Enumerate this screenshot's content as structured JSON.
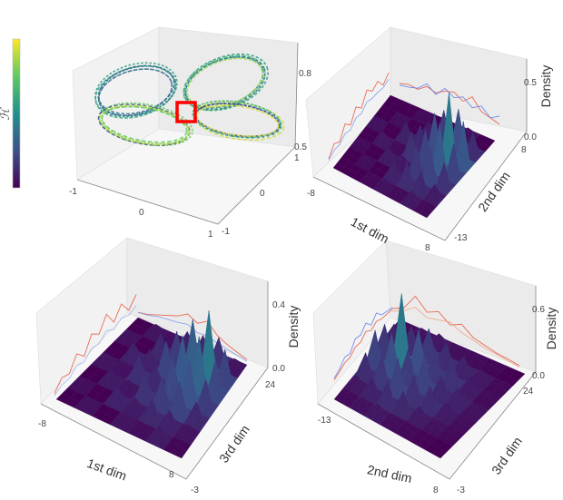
{
  "colorbar": {
    "label": "ℋ",
    "colormap": "viridis"
  },
  "chart_data": [
    {
      "type": "scatter",
      "title": "",
      "description_kind": "3d-trajectory",
      "x_ticks": [
        "-1",
        "0",
        "1"
      ],
      "y_ticks": [
        "-1",
        "0",
        "1"
      ],
      "z_ticks": [
        "0.5",
        "0.8"
      ],
      "xlim": [
        -1,
        1
      ],
      "ylim": [
        -1,
        1
      ],
      "zlim": [
        0.5,
        0.8
      ],
      "highlight_color": "#ff0000"
    },
    {
      "type": "heatmap",
      "surface": true,
      "xlabel": "1st dim",
      "ylabel": "2nd dim",
      "zlabel": "Density",
      "x_ticks": [
        "-8",
        "8"
      ],
      "y_ticks": [
        "-13",
        "8"
      ],
      "z_ticks": [
        "0.0",
        "0.5"
      ],
      "xlim": [
        -8,
        8
      ],
      "ylim": [
        -13,
        8
      ],
      "zlim": [
        0,
        0.5
      ],
      "grid": [
        [
          0,
          0,
          0.05,
          0,
          0.08,
          0,
          0
        ],
        [
          0,
          0.06,
          0,
          0.1,
          0,
          0.07,
          0
        ],
        [
          0.04,
          0,
          0.12,
          0.05,
          0.15,
          0,
          0.05
        ],
        [
          0.08,
          0.15,
          0.1,
          0.22,
          0.18,
          0.12,
          0
        ],
        [
          0.05,
          0.2,
          0.25,
          0.3,
          0.35,
          0.28,
          0.05
        ],
        [
          0.1,
          0.18,
          0.3,
          0.42,
          0.6,
          0.35,
          0.08
        ],
        [
          0.05,
          0.12,
          0.22,
          0.3,
          0.4,
          0.2,
          0
        ]
      ],
      "marginals_left": [
        {
          "color": "#e8553a",
          "values": [
            0.05,
            0.2,
            0.1,
            0.3,
            0.15,
            0.35,
            0.2,
            0.4,
            0.25,
            0.3,
            0.1,
            0.2
          ]
        },
        {
          "color": "#7b9cf0",
          "values": [
            0.02,
            0.08,
            0.05,
            0.12,
            0.06,
            0.15,
            0.1,
            0.18,
            0.12,
            0.1,
            0.05,
            0.08
          ]
        }
      ],
      "marginals_right": [
        {
          "color": "#e8553a",
          "values": [
            0.05,
            0.1,
            0.08,
            0.2,
            0.15,
            0.25,
            0.3,
            0.2,
            0.35,
            0.15,
            0.1,
            0.05
          ]
        },
        {
          "color": "#5b7cf0",
          "values": [
            0.02,
            0.05,
            0.1,
            0.25,
            0.12,
            0.3,
            0.2,
            0.28,
            0.15,
            0.25,
            0.1,
            0.2
          ]
        }
      ]
    },
    {
      "type": "heatmap",
      "surface": true,
      "xlabel": "1st dim",
      "ylabel": "3rd dim",
      "zlabel": "Density",
      "x_ticks": [
        "-8",
        "8"
      ],
      "y_ticks": [
        "-3",
        "24"
      ],
      "z_ticks": [
        "0.0",
        "0.4"
      ],
      "xlim": [
        -8,
        8
      ],
      "ylim": [
        -3,
        24
      ],
      "zlim": [
        0,
        0.4
      ],
      "grid": [
        [
          0,
          0.04,
          0,
          0.06,
          0,
          0.05,
          0
        ],
        [
          0.05,
          0,
          0.08,
          0.05,
          0.1,
          0,
          0.06
        ],
        [
          0,
          0.1,
          0.06,
          0.14,
          0.1,
          0.12,
          0.04
        ],
        [
          0.06,
          0.08,
          0.15,
          0.12,
          0.2,
          0.18,
          0.1
        ],
        [
          0.04,
          0.12,
          0.18,
          0.22,
          0.28,
          0.3,
          0.12
        ],
        [
          0.08,
          0.1,
          0.2,
          0.25,
          0.32,
          0.4,
          0.15
        ],
        [
          0.02,
          0.06,
          0.12,
          0.18,
          0.22,
          0.2,
          0.06
        ]
      ],
      "marginals_left": [
        {
          "color": "#e8553a",
          "values": [
            0.05,
            0.15,
            0.1,
            0.25,
            0.12,
            0.3,
            0.2,
            0.35,
            0.15,
            0.28,
            0.1,
            0.2
          ]
        },
        {
          "color": "#9bb4f0",
          "values": [
            0.02,
            0.06,
            0.04,
            0.1,
            0.05,
            0.12,
            0.08,
            0.14,
            0.06,
            0.1,
            0.04,
            0.06
          ]
        }
      ],
      "marginals_right": [
        {
          "color": "#e8553a",
          "values": [
            0.02,
            0.05,
            0.1,
            0.15,
            0.2,
            0.28,
            0.22,
            0.3,
            0.18,
            0.12,
            0.08,
            0.04
          ]
        },
        {
          "color": "#7b9cf0",
          "values": [
            0.02,
            0.04,
            0.08,
            0.1,
            0.12,
            0.15,
            0.1,
            0.12,
            0.08,
            0.06,
            0.04,
            0.02
          ]
        }
      ]
    },
    {
      "type": "heatmap",
      "surface": true,
      "xlabel": "2nd dim",
      "ylabel": "3rd dim",
      "zlabel": "Density",
      "x_ticks": [
        "-13",
        "8"
      ],
      "y_ticks": [
        "-3",
        "24"
      ],
      "z_ticks": [
        "0.0",
        "0.6"
      ],
      "xlim": [
        -13,
        8
      ],
      "ylim": [
        -3,
        24
      ],
      "zlim": [
        0,
        0.6
      ],
      "grid": [
        [
          0.05,
          0.1,
          0.2,
          0.3,
          0.25,
          0.15,
          0.05
        ],
        [
          0.08,
          0.15,
          0.25,
          0.35,
          0.6,
          0.2,
          0.08
        ],
        [
          0.1,
          0.2,
          0.3,
          0.28,
          0.35,
          0.25,
          0.1
        ],
        [
          0.06,
          0.18,
          0.22,
          0.3,
          0.25,
          0.2,
          0.06
        ],
        [
          0.04,
          0.12,
          0.2,
          0.18,
          0.22,
          0.15,
          0.05
        ],
        [
          0.02,
          0.08,
          0.12,
          0.15,
          0.12,
          0.1,
          0.03
        ],
        [
          0,
          0.04,
          0.06,
          0.08,
          0.05,
          0.04,
          0
        ]
      ],
      "marginals_left": [
        {
          "color": "#5b7cf0",
          "values": [
            0.05,
            0.1,
            0.2,
            0.15,
            0.3,
            0.25,
            0.35,
            0.2,
            0.3,
            0.15,
            0.1,
            0.05
          ]
        },
        {
          "color": "#e8553a",
          "values": [
            0.02,
            0.05,
            0.1,
            0.08,
            0.15,
            0.12,
            0.2,
            0.1,
            0.15,
            0.08,
            0.05,
            0.02
          ]
        }
      ],
      "marginals_right": [
        {
          "color": "#e8553a",
          "values": [
            0.1,
            0.2,
            0.5,
            0.3,
            0.4,
            0.25,
            0.35,
            0.2,
            0.15,
            0.1,
            0.08,
            0.05
          ]
        },
        {
          "color": "#f0a080",
          "values": [
            0.05,
            0.15,
            0.3,
            0.2,
            0.25,
            0.3,
            0.2,
            0.15,
            0.1,
            0.08,
            0.05,
            0.02
          ]
        }
      ]
    }
  ]
}
